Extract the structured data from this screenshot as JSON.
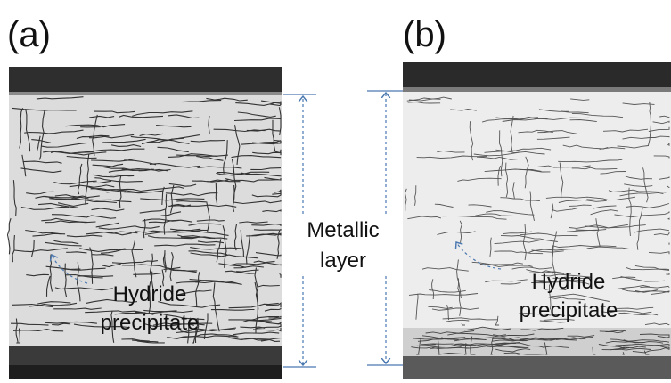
{
  "panels": [
    {
      "label": "(a)",
      "annotation": [
        "Hydride",
        "precipitate"
      ]
    },
    {
      "label": "(b)",
      "annotation": [
        "Hydride",
        "precipitate"
      ]
    }
  ],
  "dimension_label": [
    "Metallic",
    "layer"
  ]
}
